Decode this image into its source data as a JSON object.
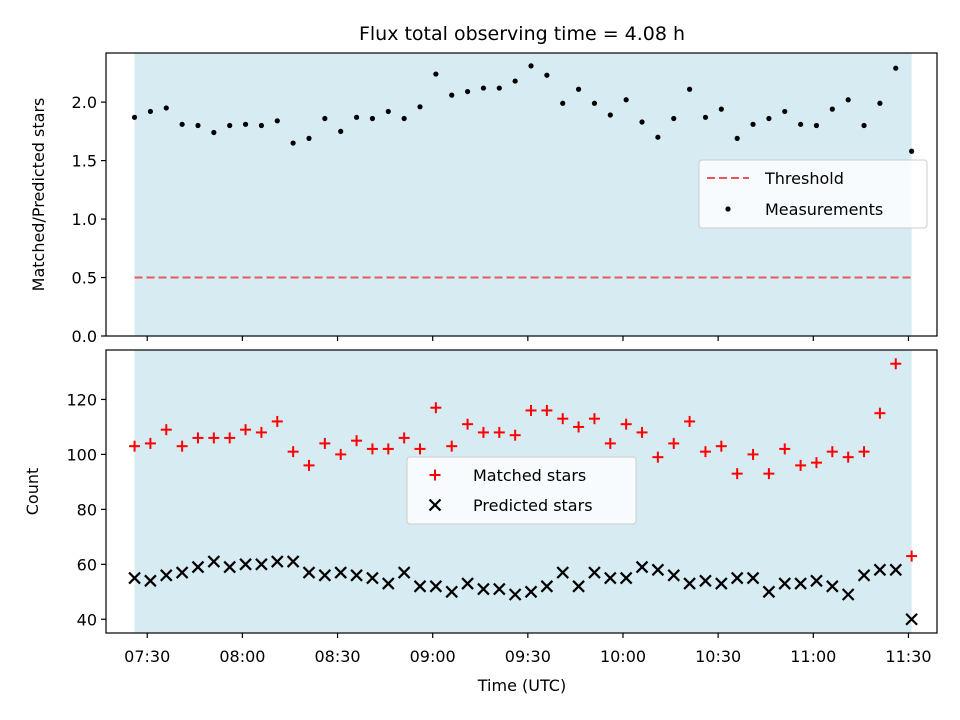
{
  "title": "Flux total observing time = 4.08 h",
  "colors": {
    "band": "#add8e6",
    "threshold": "#e8585a",
    "matched": "#ff0000",
    "predicted": "#000000",
    "measurement": "#000000"
  },
  "chart_data": [
    {
      "type": "scatter",
      "ylabel": "Matched/Predicted stars",
      "ylim": [
        0,
        2.42
      ],
      "yticks": [
        0.0,
        0.5,
        1.0,
        1.5,
        2.0
      ],
      "ytick_labels": [
        "0.0",
        "0.5",
        "1.0",
        "1.5",
        "2.0"
      ],
      "grid": false,
      "legend_position": "center-right",
      "observing_window": [
        "07:26",
        "11:31"
      ],
      "threshold": {
        "name": "Threshold",
        "value": 0.5,
        "style": "dashed"
      },
      "measurements": {
        "name": "Measurements",
        "x": [
          "07:26",
          "07:31",
          "07:36",
          "07:41",
          "07:46",
          "07:51",
          "07:56",
          "08:01",
          "08:06",
          "08:11",
          "08:16",
          "08:21",
          "08:26",
          "08:31",
          "08:36",
          "08:41",
          "08:46",
          "08:51",
          "08:56",
          "09:01",
          "09:06",
          "09:11",
          "09:16",
          "09:21",
          "09:26",
          "09:31",
          "09:36",
          "09:41",
          "09:46",
          "09:51",
          "09:56",
          "10:01",
          "10:06",
          "10:11",
          "10:16",
          "10:21",
          "10:26",
          "10:31",
          "10:36",
          "10:41",
          "10:46",
          "10:51",
          "10:56",
          "11:01",
          "11:06",
          "11:11",
          "11:16",
          "11:21",
          "11:26",
          "11:31"
        ],
        "y": [
          1.87,
          1.92,
          1.95,
          1.81,
          1.8,
          1.74,
          1.8,
          1.81,
          1.8,
          1.84,
          1.65,
          1.69,
          1.86,
          1.75,
          1.87,
          1.86,
          1.92,
          1.86,
          1.96,
          2.24,
          2.06,
          2.09,
          2.12,
          2.12,
          2.18,
          2.31,
          2.23,
          1.99,
          2.11,
          1.99,
          1.89,
          2.02,
          1.83,
          1.7,
          1.86,
          2.11,
          1.87,
          1.94,
          1.69,
          1.81,
          1.86,
          1.92,
          1.81,
          1.8,
          1.94,
          2.02,
          1.8,
          1.99,
          2.29,
          1.58
        ]
      }
    },
    {
      "type": "scatter",
      "xlabel": "Time (UTC)",
      "ylabel": "Count",
      "ylim": [
        35,
        138
      ],
      "yticks": [
        40,
        60,
        80,
        100,
        120
      ],
      "ytick_labels": [
        "40",
        "60",
        "80",
        "100",
        "120"
      ],
      "xlim": [
        "07:17",
        "11:39"
      ],
      "xticks": [
        "07:30",
        "08:00",
        "08:30",
        "09:00",
        "09:30",
        "10:00",
        "10:30",
        "11:00",
        "11:30"
      ],
      "xtick_labels": [
        "07:30",
        "08:00",
        "08:30",
        "09:00",
        "09:30",
        "10:00",
        "10:30",
        "11:00",
        "11:30"
      ],
      "grid": false,
      "legend_position": "center",
      "observing_window": [
        "07:26",
        "11:31"
      ],
      "series": [
        {
          "name": "Matched stars",
          "marker": "plus",
          "x": [
            "07:26",
            "07:31",
            "07:36",
            "07:41",
            "07:46",
            "07:51",
            "07:56",
            "08:01",
            "08:06",
            "08:11",
            "08:16",
            "08:21",
            "08:26",
            "08:31",
            "08:36",
            "08:41",
            "08:46",
            "08:51",
            "08:56",
            "09:01",
            "09:06",
            "09:11",
            "09:16",
            "09:21",
            "09:26",
            "09:31",
            "09:36",
            "09:41",
            "09:46",
            "09:51",
            "09:56",
            "10:01",
            "10:06",
            "10:11",
            "10:16",
            "10:21",
            "10:26",
            "10:31",
            "10:36",
            "10:41",
            "10:46",
            "10:51",
            "10:56",
            "11:01",
            "11:06",
            "11:11",
            "11:16",
            "11:21",
            "11:26",
            "11:31"
          ],
          "y": [
            103,
            104,
            109,
            103,
            106,
            106,
            106,
            109,
            108,
            112,
            101,
            96,
            104,
            100,
            105,
            102,
            102,
            106,
            102,
            117,
            103,
            111,
            108,
            108,
            107,
            116,
            116,
            113,
            110,
            113,
            104,
            111,
            108,
            99,
            104,
            112,
            101,
            103,
            93,
            100,
            93,
            102,
            96,
            97,
            101,
            99,
            101,
            115,
            133,
            63
          ]
        },
        {
          "name": "Predicted stars",
          "marker": "x",
          "x": [
            "07:26",
            "07:31",
            "07:36",
            "07:41",
            "07:46",
            "07:51",
            "07:56",
            "08:01",
            "08:06",
            "08:11",
            "08:16",
            "08:21",
            "08:26",
            "08:31",
            "08:36",
            "08:41",
            "08:46",
            "08:51",
            "08:56",
            "09:01",
            "09:06",
            "09:11",
            "09:16",
            "09:21",
            "09:26",
            "09:31",
            "09:36",
            "09:41",
            "09:46",
            "09:51",
            "09:56",
            "10:01",
            "10:06",
            "10:11",
            "10:16",
            "10:21",
            "10:26",
            "10:31",
            "10:36",
            "10:41",
            "10:46",
            "10:51",
            "10:56",
            "11:01",
            "11:06",
            "11:11",
            "11:16",
            "11:21",
            "11:26",
            "11:31"
          ],
          "y": [
            55,
            54,
            56,
            57,
            59,
            61,
            59,
            60,
            60,
            61,
            61,
            57,
            56,
            57,
            56,
            55,
            53,
            57,
            52,
            52,
            50,
            53,
            51,
            51,
            49,
            50,
            52,
            57,
            52,
            57,
            55,
            55,
            59,
            58,
            56,
            53,
            54,
            53,
            55,
            55,
            50,
            53,
            53,
            54,
            52,
            49,
            56,
            58,
            58,
            40
          ]
        }
      ]
    }
  ]
}
